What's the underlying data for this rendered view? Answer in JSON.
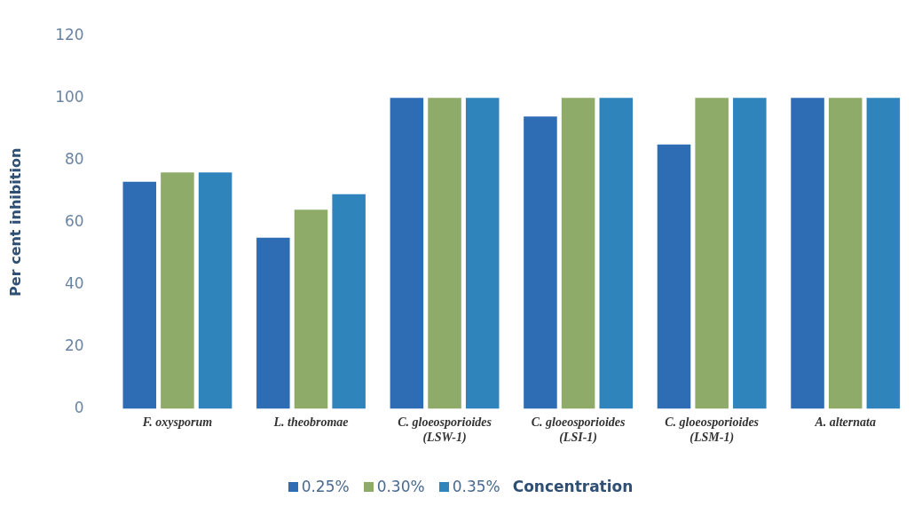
{
  "chart_data": {
    "type": "bar",
    "ylabel": "Per cent inhibition",
    "legend_title": "Concentration",
    "categories": [
      "F. oxysporum",
      "L. theobromae",
      "C. gloeosporioides\n(LSW-1)",
      "C. gloeosporioides\n(LSI-1)",
      "C. gloeosporioides\n(LSM-1)",
      "A. alternata"
    ],
    "series": [
      {
        "name": "0.25%",
        "color": "#2e6db4",
        "values": [
          73,
          55,
          100,
          94,
          85,
          100
        ]
      },
      {
        "name": "0.30%",
        "color": "#8fab6a",
        "values": [
          76,
          64,
          100,
          100,
          100,
          100
        ]
      },
      {
        "name": "0.35%",
        "color": "#2f84bc",
        "values": [
          76,
          69,
          100,
          100,
          100,
          100
        ]
      }
    ],
    "ylim": [
      0,
      120
    ],
    "yticks": [
      0,
      20,
      40,
      60,
      80,
      100,
      120
    ],
    "grid": false,
    "legend": "bottom"
  }
}
